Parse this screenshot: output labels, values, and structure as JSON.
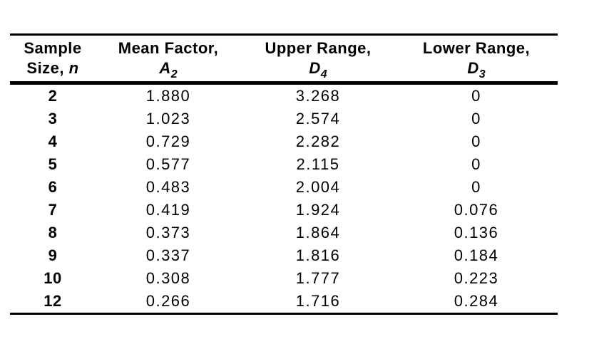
{
  "page": {
    "background": "#ffffff",
    "text_color": "#000000",
    "rule_color": "#000000"
  },
  "table": {
    "header": {
      "col1": {
        "line1": "Sample",
        "line2_prefix": "Size, ",
        "line2_symbol": "n"
      },
      "col2": {
        "line1": "Mean Factor,",
        "symbol": "A",
        "subscript": "2"
      },
      "col3": {
        "line1": "Upper Range,",
        "symbol": "D",
        "subscript": "4"
      },
      "col4": {
        "line1": "Lower Range,",
        "symbol": "D",
        "subscript": "3"
      }
    },
    "rows": [
      [
        "2",
        "1.880",
        "3.268",
        "0"
      ],
      [
        "3",
        "1.023",
        "2.574",
        "0"
      ],
      [
        "4",
        "0.729",
        "2.282",
        "0"
      ],
      [
        "5",
        "0.577",
        "2.115",
        "0"
      ],
      [
        "6",
        "0.483",
        "2.004",
        "0"
      ],
      [
        "7",
        "0.419",
        "1.924",
        "0.076"
      ],
      [
        "8",
        "0.373",
        "1.864",
        "0.136"
      ],
      [
        "9",
        "0.337",
        "1.816",
        "0.184"
      ],
      [
        "10",
        "0.308",
        "1.777",
        "0.223"
      ],
      [
        "12",
        "0.266",
        "1.716",
        "0.284"
      ]
    ]
  },
  "chart_data": {
    "type": "table",
    "columns": [
      "Sample Size, n",
      "Mean Factor, A2",
      "Upper Range, D4",
      "Lower Range, D3"
    ],
    "rows": [
      [
        2,
        1.88,
        3.268,
        0
      ],
      [
        3,
        1.023,
        2.574,
        0
      ],
      [
        4,
        0.729,
        2.282,
        0
      ],
      [
        5,
        0.577,
        2.115,
        0
      ],
      [
        6,
        0.483,
        2.004,
        0
      ],
      [
        7,
        0.419,
        1.924,
        0.076
      ],
      [
        8,
        0.373,
        1.864,
        0.136
      ],
      [
        9,
        0.337,
        1.816,
        0.184
      ],
      [
        10,
        0.308,
        1.777,
        0.223
      ],
      [
        12,
        0.266,
        1.716,
        0.284
      ]
    ]
  }
}
